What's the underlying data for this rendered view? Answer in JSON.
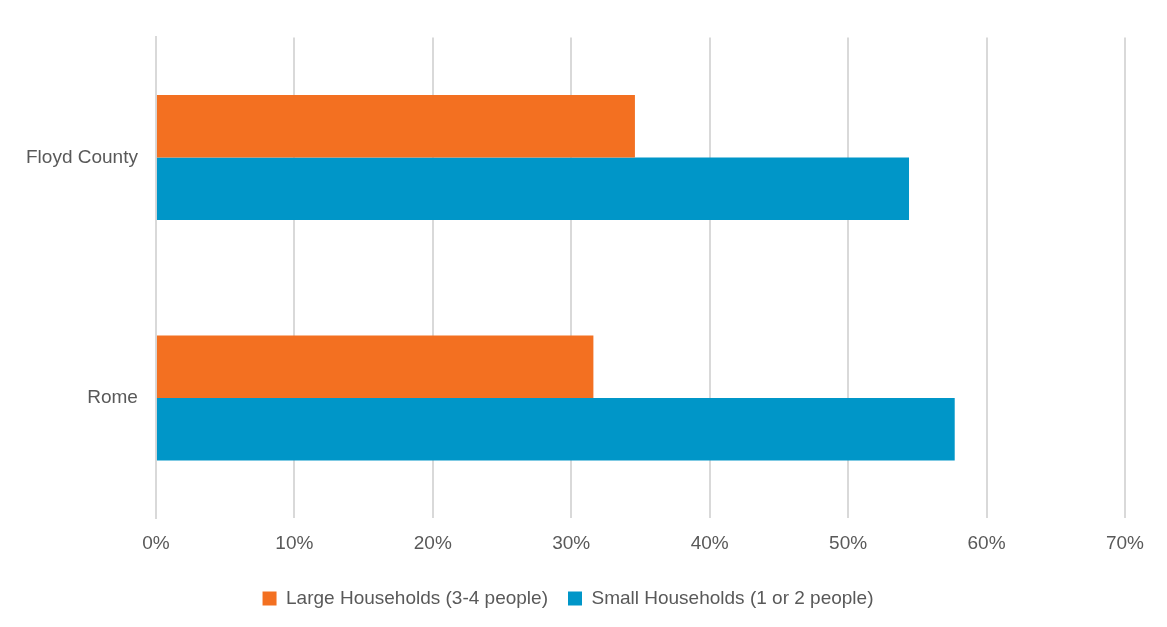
{
  "chart_data": {
    "type": "bar",
    "orientation": "horizontal",
    "categories": [
      "Floyd County",
      "Rome"
    ],
    "series": [
      {
        "name": "Large Households (3-4 people)",
        "color": "#f37021",
        "values": [
          34.6,
          31.6
        ]
      },
      {
        "name": "Small Households (1 or 2 people)",
        "color": "#0096c8",
        "values": [
          54.4,
          57.7
        ]
      }
    ],
    "xlim": [
      0,
      70
    ],
    "xticks": [
      {
        "value": 0,
        "label": "0%"
      },
      {
        "value": 10,
        "label": "10%"
      },
      {
        "value": 20,
        "label": "20%"
      },
      {
        "value": 30,
        "label": "30%"
      },
      {
        "value": 40,
        "label": "40%"
      },
      {
        "value": 50,
        "label": "50%"
      },
      {
        "value": 60,
        "label": "60%"
      },
      {
        "value": 70,
        "label": "70%"
      }
    ],
    "grid": "x",
    "legend": "bottom"
  }
}
